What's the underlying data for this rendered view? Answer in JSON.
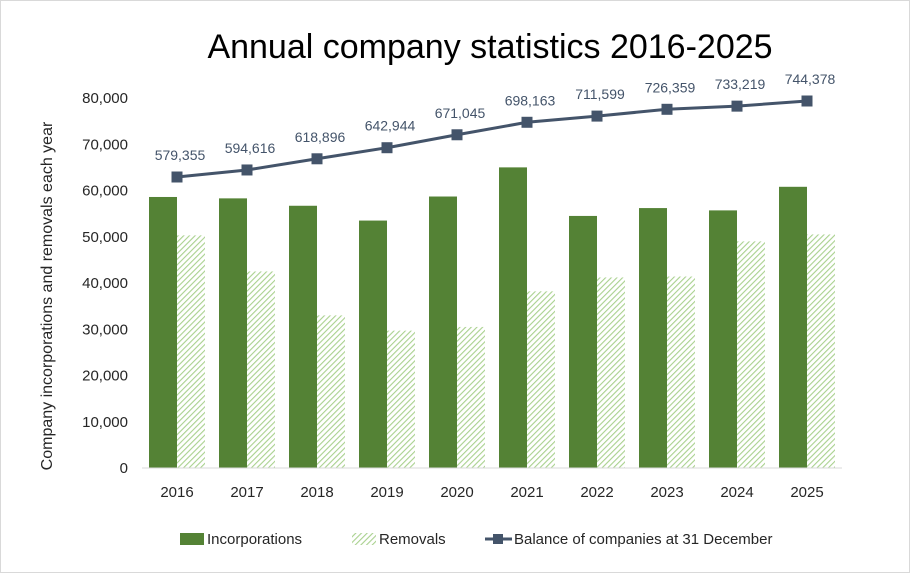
{
  "chart_data": {
    "type": "bar",
    "title": "Annual company statistics 2016-2025",
    "xlabel": "",
    "ylabel": "Company incorporations and removals each year",
    "ylim": [
      0,
      80000
    ],
    "y_ticks": [
      "0",
      "10,000",
      "20,000",
      "30,000",
      "40,000",
      "50,000",
      "60,000",
      "70,000",
      "80,000"
    ],
    "categories": [
      "2016",
      "2017",
      "2018",
      "2019",
      "2020",
      "2021",
      "2022",
      "2023",
      "2024",
      "2025"
    ],
    "series": [
      {
        "name": "Incorporations",
        "type": "bar",
        "color": "#548235",
        "values": [
          58600,
          58300,
          56700,
          53500,
          58700,
          65000,
          54500,
          56200,
          55700,
          60800
        ]
      },
      {
        "name": "Removals",
        "type": "bar",
        "color": "#a9d18e",
        "pattern": "diagonal-hatch",
        "values": [
          50300,
          42500,
          33000,
          29700,
          30500,
          38200,
          41200,
          41400,
          49000,
          50500
        ]
      },
      {
        "name": "Balance of companies at 31 December",
        "type": "line",
        "marker": "square",
        "color": "#44546a",
        "values": [
          579355,
          594616,
          618896,
          642944,
          671045,
          698163,
          711599,
          726359,
          733219,
          744378
        ],
        "data_labels": [
          "579,355",
          "594,616",
          "618,896",
          "642,944",
          "671,045",
          "698,163",
          "711,599",
          "726,359",
          "733,219",
          "744,378"
        ]
      }
    ],
    "grid": false,
    "legend_position": "bottom"
  }
}
